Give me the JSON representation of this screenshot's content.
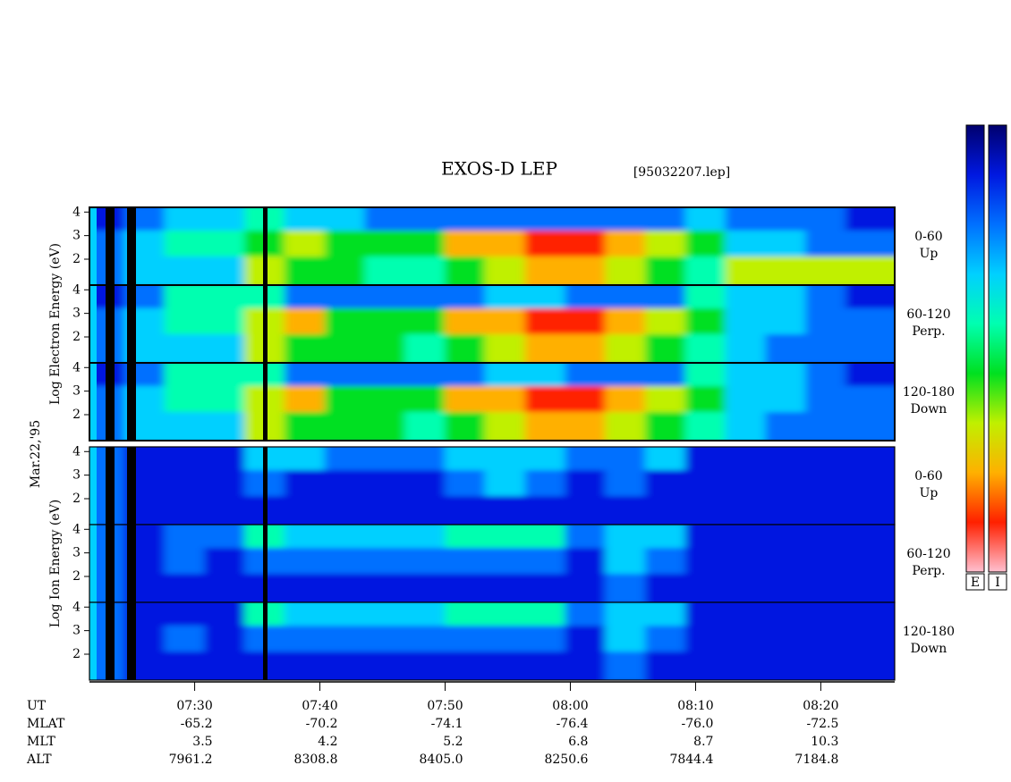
{
  "chart_data": {
    "type": "heatmap",
    "title": "EXOS-D LEP",
    "subtitle": "[95032207.lep]",
    "date_label": "Mar.22,'95",
    "x_label": "UT",
    "colormap": [
      "#00006e",
      "#0018e0",
      "#0070ff",
      "#00d0ff",
      "#00ffb0",
      "#00e020",
      "#c0f000",
      "#ffb000",
      "#ff2000",
      "#ffc0d0"
    ],
    "colorbar_labels": [
      "E",
      "I"
    ],
    "xlim": [
      441.6,
      505.9
    ],
    "x": [
      443.2,
      446.4,
      449.6,
      452.8,
      456,
      459.2,
      462.4,
      465.6,
      468.8,
      472,
      475.2,
      478.4,
      481.6,
      484.8,
      488,
      491.2,
      494.4,
      497.6,
      500.8,
      504
    ],
    "xticks": [
      {
        "value": 450,
        "label": "07:30"
      },
      {
        "value": 460,
        "label": "07:40"
      },
      {
        "value": 470,
        "label": "07:50"
      },
      {
        "value": 480,
        "label": "08:00"
      },
      {
        "value": 490,
        "label": "08:10"
      },
      {
        "value": 500,
        "label": "08:20"
      }
    ],
    "ylim": [
      0.9,
      4.2
    ],
    "yticks": [
      2,
      3,
      4
    ],
    "groups": [
      {
        "ylabel": "Log Electron Energy (eV)",
        "panels": [
          {
            "label": [
              "0-60",
              "Up"
            ],
            "values": [
              [
                1,
                2,
                3,
                3,
                4,
                3,
                3,
                2,
                2,
                2,
                2,
                2,
                2,
                2,
                2,
                3,
                2,
                2,
                2,
                1
              ],
              [
                2,
                3,
                4,
                4,
                5,
                6,
                5,
                5,
                5,
                7,
                7,
                8,
                8,
                7,
                6,
                5,
                3,
                3,
                2,
                2
              ],
              [
                2,
                3,
                3,
                3,
                6,
                5,
                5,
                4,
                4,
                5,
                6,
                7,
                7,
                6,
                5,
                4,
                6,
                6,
                6,
                6
              ]
            ]
          },
          {
            "label": [
              "60-120",
              "Perp."
            ],
            "values": [
              [
                1,
                2,
                4,
                4,
                4,
                2,
                2,
                2,
                2,
                2,
                3,
                3,
                2,
                2,
                2,
                4,
                3,
                3,
                2,
                1
              ],
              [
                2,
                3,
                4,
                4,
                6,
                7,
                5,
                5,
                5,
                7,
                7,
                8,
                8,
                7,
                6,
                5,
                3,
                3,
                2,
                2
              ],
              [
                2,
                3,
                3,
                3,
                6,
                5,
                5,
                5,
                4,
                5,
                6,
                7,
                7,
                6,
                5,
                4,
                3,
                2,
                2,
                2
              ]
            ]
          },
          {
            "label": [
              "120-180",
              "Down"
            ],
            "values": [
              [
                1,
                2,
                4,
                4,
                4,
                2,
                2,
                2,
                2,
                2,
                3,
                3,
                2,
                2,
                2,
                4,
                3,
                3,
                2,
                1
              ],
              [
                2,
                3,
                4,
                4,
                6,
                7,
                5,
                5,
                5,
                7,
                7,
                8,
                8,
                7,
                6,
                5,
                3,
                3,
                2,
                2
              ],
              [
                2,
                3,
                3,
                3,
                6,
                5,
                5,
                5,
                4,
                5,
                6,
                7,
                7,
                6,
                5,
                4,
                3,
                2,
                2,
                2
              ]
            ]
          }
        ]
      },
      {
        "ylabel": "Log Ion Energy (eV)",
        "panels": [
          {
            "label": [
              "0-60",
              "Up"
            ],
            "values": [
              [
                2,
                1,
                1,
                1,
                3,
                3,
                2,
                2,
                2,
                3,
                3,
                3,
                2,
                2,
                3,
                1,
                1,
                1,
                1,
                1
              ],
              [
                2,
                1,
                1,
                1,
                2,
                1,
                1,
                1,
                1,
                2,
                3,
                2,
                1,
                2,
                1,
                1,
                1,
                1,
                1,
                1
              ],
              [
                2,
                1,
                1,
                1,
                1,
                1,
                1,
                1,
                1,
                1,
                1,
                1,
                1,
                1,
                1,
                1,
                1,
                1,
                1,
                1
              ]
            ]
          },
          {
            "label": [
              "60-120",
              "Perp."
            ],
            "values": [
              [
                2,
                1,
                2,
                2,
                4,
                3,
                3,
                3,
                3,
                4,
                4,
                4,
                2,
                3,
                3,
                1,
                1,
                1,
                1,
                1
              ],
              [
                2,
                1,
                2,
                1,
                2,
                2,
                2,
                2,
                2,
                2,
                2,
                2,
                1,
                3,
                2,
                1,
                1,
                1,
                1,
                1
              ],
              [
                2,
                1,
                1,
                1,
                1,
                1,
                1,
                1,
                1,
                1,
                1,
                1,
                1,
                2,
                1,
                1,
                1,
                1,
                1,
                1
              ]
            ]
          },
          {
            "label": [
              "120-180",
              "Down"
            ],
            "values": [
              [
                2,
                1,
                1,
                1,
                4,
                3,
                3,
                3,
                3,
                4,
                4,
                4,
                2,
                3,
                3,
                1,
                1,
                1,
                1,
                1
              ],
              [
                2,
                1,
                2,
                1,
                2,
                2,
                2,
                2,
                2,
                2,
                2,
                2,
                1,
                3,
                2,
                1,
                1,
                1,
                1,
                1
              ],
              [
                2,
                1,
                1,
                1,
                1,
                1,
                1,
                1,
                1,
                1,
                1,
                1,
                1,
                2,
                1,
                1,
                1,
                1,
                1,
                1
              ]
            ]
          }
        ]
      }
    ],
    "ephemeris": [
      {
        "name": "MLAT",
        "values": [
          -65.2,
          -70.2,
          -74.1,
          -76.4,
          -76,
          -72.5
        ],
        "value_labels": [
          "-65.2",
          "-70.2",
          "-74.1",
          "-76.4",
          "-76.0",
          "-72.5"
        ]
      },
      {
        "name": "MLT",
        "values": [
          3.5,
          4.2,
          5.2,
          6.8,
          8.7,
          10.3
        ]
      },
      {
        "name": "ALT",
        "values": [
          7961.2,
          8308.8,
          8405,
          8250.6,
          7844.4,
          7184.8
        ],
        "value_labels": [
          "7961.2",
          "8308.8",
          "8405.0",
          "8250.6",
          "7844.4",
          "7184.8"
        ]
      }
    ]
  }
}
